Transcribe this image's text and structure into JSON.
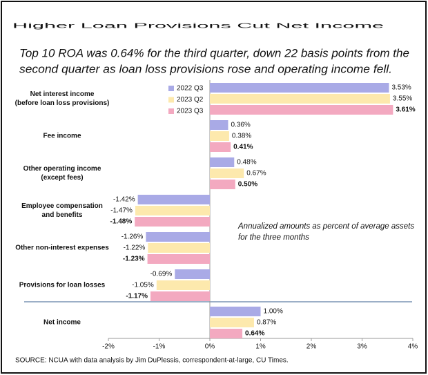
{
  "chart_data": {
    "type": "bar",
    "orientation": "horizontal",
    "title": "Higher Loan Provisions Cut Net Income",
    "subtitle": [
      "Top 10 ROA was 0.64% for the third quarter, down 22 basis points from the",
      "second quarter as loan loss provisions rose and operating income fell."
    ],
    "categories": [
      [
        "Net interest income",
        "(before loan loss provisions)"
      ],
      [
        "Fee income"
      ],
      [
        "Other operating income",
        "(except fees)"
      ],
      [
        "Employee compensation",
        "and benefits"
      ],
      [
        "Other non-interest expenses"
      ],
      [
        "Provisions for loan losses"
      ],
      [
        "Net income"
      ]
    ],
    "series": [
      {
        "name": "2022 Q3",
        "color": "#a9aae6",
        "values": [
          3.53,
          0.36,
          0.48,
          -1.42,
          -1.26,
          -0.69,
          1.0
        ],
        "value_labels": [
          "3.53%",
          "0.36%",
          "0.48%",
          "-1.42%",
          "-1.26%",
          "-0.69%",
          "1.00%"
        ]
      },
      {
        "name": "2023 Q2",
        "color": "#fde9ad",
        "values": [
          3.55,
          0.38,
          0.67,
          -1.47,
          -1.22,
          -1.05,
          0.87
        ],
        "value_labels": [
          "3.55%",
          "0.38%",
          "0.67%",
          "-1.47%",
          "-1.22%",
          "-1.05%",
          "0.87%"
        ]
      },
      {
        "name": "2023 Q3",
        "color": "#f3a9c0",
        "values": [
          3.61,
          0.41,
          0.5,
          -1.48,
          -1.23,
          -1.17,
          0.64
        ],
        "value_labels": [
          "3.61%",
          "0.41%",
          "0.50%",
          "-1.48%",
          "-1.23%",
          "-1.17%",
          "0.64%"
        ],
        "bold_labels": true
      }
    ],
    "xlim": [
      -2,
      4
    ],
    "xticks": [
      {
        "value": -2,
        "label": "-2%"
      },
      {
        "value": -1,
        "label": "-1%"
      },
      {
        "value": 0,
        "label": "0%"
      },
      {
        "value": 1,
        "label": "1%"
      },
      {
        "value": 2,
        "label": "2%"
      },
      {
        "value": 3,
        "label": "3%"
      },
      {
        "value": 4,
        "label": "4%"
      }
    ],
    "annotation": [
      "Annualized amounts as percent of average assets",
      "for the three months"
    ],
    "source": "SOURCE: NCUA with data analysis by Jim DuPlessis, correspondent-at-large, CU Times."
  }
}
